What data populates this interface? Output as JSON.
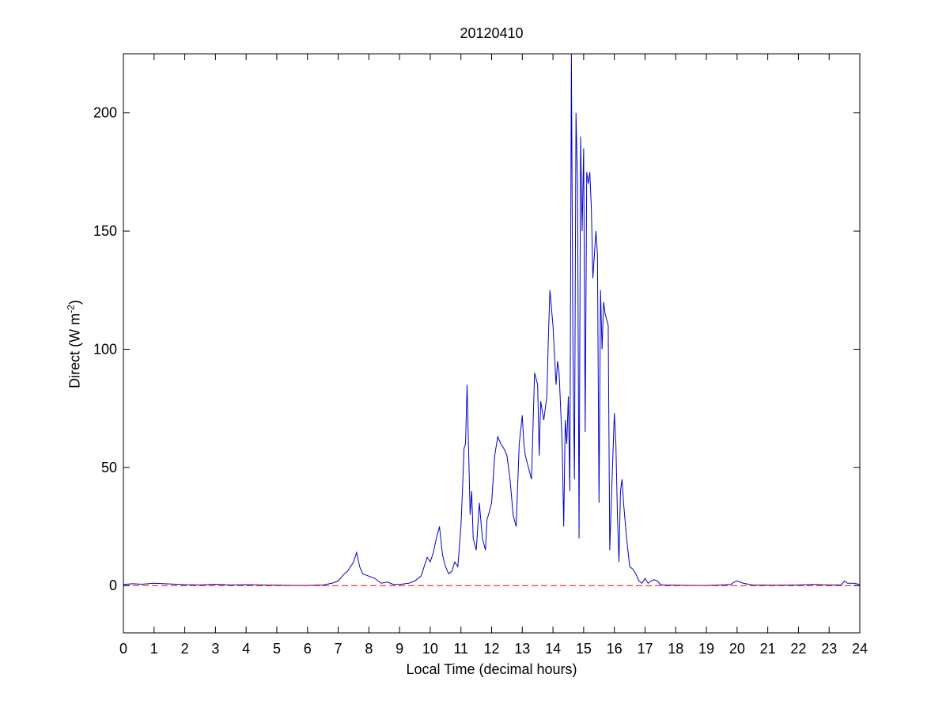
{
  "chart_data": {
    "type": "line",
    "title": "20120410",
    "xlabel": "Local Time (decimal hours)",
    "ylabel_main": "Direct (W m",
    "ylabel_sup": "-2",
    "ylabel_close": ")",
    "xlim": [
      0,
      24
    ],
    "ylim": [
      -20,
      225
    ],
    "xticks": [
      0,
      1,
      2,
      3,
      4,
      5,
      6,
      7,
      8,
      9,
      10,
      11,
      12,
      13,
      14,
      15,
      16,
      17,
      18,
      19,
      20,
      21,
      22,
      23,
      24
    ],
    "xtick_labels": [
      "0",
      "1",
      "2",
      "3",
      "4",
      "5",
      "6",
      "7",
      "8",
      "9",
      "10",
      "11",
      "12",
      "13",
      "14",
      "15",
      "16",
      "17",
      "18",
      "19",
      "20",
      "21",
      "22",
      "23",
      "24"
    ],
    "yticks": [
      0,
      50,
      100,
      150,
      200
    ],
    "ytick_labels": [
      "0",
      "50",
      "100",
      "150",
      "200"
    ],
    "grid": false,
    "series": [
      {
        "color": "#0000cc",
        "style": "solid",
        "x": [
          0,
          0.3,
          0.6,
          1.0,
          1.5,
          2.0,
          2.5,
          3.0,
          3.5,
          4.0,
          4.5,
          5.0,
          5.5,
          6.0,
          6.5,
          6.8,
          7.0,
          7.2,
          7.3,
          7.4,
          7.5,
          7.6,
          7.7,
          7.8,
          8.0,
          8.2,
          8.4,
          8.6,
          8.8,
          9.0,
          9.3,
          9.5,
          9.7,
          9.8,
          9.9,
          10.0,
          10.1,
          10.2,
          10.3,
          10.4,
          10.5,
          10.6,
          10.7,
          10.8,
          10.9,
          11.0,
          11.05,
          11.1,
          11.15,
          11.2,
          11.3,
          11.35,
          11.4,
          11.5,
          11.55,
          11.6,
          11.7,
          11.8,
          11.85,
          11.9,
          12.0,
          12.1,
          12.2,
          12.3,
          12.4,
          12.5,
          12.6,
          12.7,
          12.8,
          12.9,
          13.0,
          13.05,
          13.1,
          13.2,
          13.3,
          13.4,
          13.5,
          13.55,
          13.6,
          13.7,
          13.8,
          13.85,
          13.9,
          14.0,
          14.1,
          14.15,
          14.2,
          14.3,
          14.35,
          14.4,
          14.45,
          14.5,
          14.55,
          14.6,
          14.65,
          14.7,
          14.75,
          14.8,
          14.85,
          14.9,
          14.95,
          15.0,
          15.05,
          15.1,
          15.15,
          15.2,
          15.25,
          15.3,
          15.4,
          15.45,
          15.5,
          15.55,
          15.6,
          15.65,
          15.7,
          15.8,
          15.85,
          15.9,
          16.0,
          16.05,
          16.1,
          16.15,
          16.2,
          16.25,
          16.3,
          16.4,
          16.5,
          16.6,
          16.7,
          16.8,
          16.9,
          17.0,
          17.1,
          17.2,
          17.3,
          17.4,
          17.5,
          17.6,
          18.0,
          18.5,
          19.0,
          19.5,
          19.8,
          19.9,
          20.0,
          20.2,
          20.5,
          21.0,
          21.5,
          22.0,
          22.5,
          23.0,
          23.4,
          23.5,
          23.6,
          23.8,
          24.0
        ],
        "y": [
          0.5,
          0.8,
          0.6,
          1.0,
          0.7,
          0.4,
          0.3,
          0.6,
          0.3,
          0.4,
          0.3,
          0.2,
          0.1,
          0.1,
          0.3,
          1.0,
          2.0,
          5.0,
          6.0,
          8.0,
          10.0,
          14.0,
          8.0,
          5.0,
          4.0,
          3.0,
          1.0,
          1.5,
          0.5,
          0.5,
          1.0,
          2.0,
          4.0,
          8.0,
          12.0,
          10.0,
          14.0,
          20.0,
          25.0,
          13.0,
          8.0,
          5.0,
          6.0,
          10.0,
          8.0,
          25.0,
          40.0,
          58.0,
          60.0,
          85.0,
          30.0,
          40.0,
          20.0,
          15.0,
          25.0,
          35.0,
          20.0,
          15.0,
          28.0,
          30.0,
          35.0,
          55.0,
          63.0,
          60.0,
          58.0,
          55.0,
          45.0,
          30.0,
          25.0,
          60.0,
          72.0,
          60.0,
          55.0,
          50.0,
          45.0,
          90.0,
          85.0,
          55.0,
          78.0,
          70.0,
          80.0,
          105.0,
          125.0,
          110.0,
          85.0,
          95.0,
          90.0,
          60.0,
          25.0,
          70.0,
          60.0,
          80.0,
          40.0,
          225.0,
          100.0,
          45.0,
          200.0,
          170.0,
          20.0,
          190.0,
          150.0,
          185.0,
          65.0,
          175.0,
          170.0,
          175.0,
          160.0,
          130.0,
          150.0,
          140.0,
          35.0,
          125.0,
          100.0,
          120.0,
          115.0,
          110.0,
          15.0,
          35.0,
          73.0,
          60.0,
          30.0,
          10.0,
          40.0,
          45.0,
          35.0,
          20.0,
          8.0,
          7.0,
          5.0,
          2.0,
          1.0,
          3.0,
          1.0,
          2.0,
          2.5,
          2.0,
          0.5,
          0.3,
          0.2,
          0.1,
          0.1,
          0.3,
          0.5,
          1.5,
          2.0,
          1.0,
          0.3,
          0.2,
          0.2,
          0.3,
          0.5,
          0.3,
          0.3,
          2.0,
          1.0,
          1.0,
          0.5
        ]
      },
      {
        "color": "#ff0000",
        "style": "dashed",
        "x": [
          0,
          24
        ],
        "y": [
          0,
          0
        ]
      }
    ]
  }
}
